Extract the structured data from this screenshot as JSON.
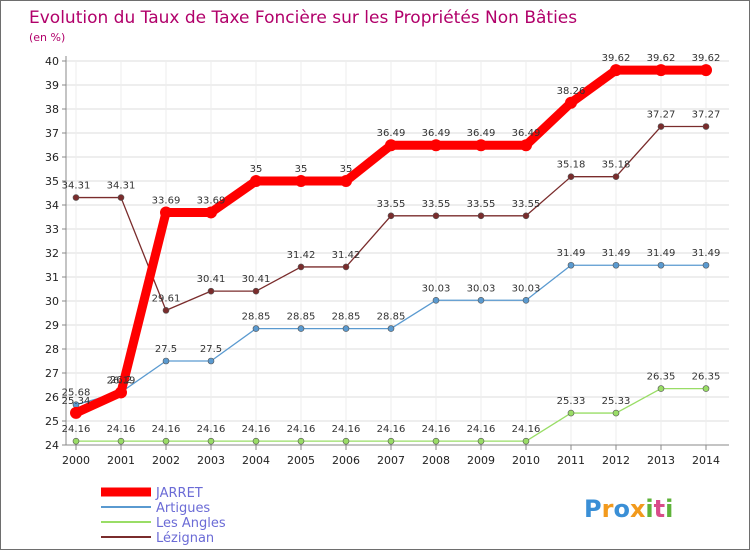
{
  "chart_data": {
    "type": "line",
    "title": "Evolution du Taux de Taxe Foncière sur les Propriétés Non Bâties",
    "subtitle": "(en %)",
    "xlabel": "",
    "ylabel": "",
    "ylim": [
      24,
      40
    ],
    "yticks": [
      24,
      25,
      26,
      27,
      28,
      29,
      30,
      31,
      32,
      33,
      34,
      35,
      36,
      37,
      38,
      39,
      40
    ],
    "x": [
      "2000",
      "2001",
      "2002",
      "2003",
      "2004",
      "2005",
      "2006",
      "2007",
      "2008",
      "2009",
      "2010",
      "2011",
      "2012",
      "2013",
      "2014"
    ],
    "grid": true,
    "legend_position": "bottom-left",
    "series": [
      {
        "name": "JARRET",
        "color": "#ff0000",
        "values": [
          25.34,
          26.19,
          33.69,
          33.69,
          35,
          35,
          35,
          36.49,
          36.49,
          36.49,
          36.49,
          38.26,
          39.62,
          39.62,
          39.62
        ],
        "labels": [
          "25.34",
          "26.19",
          "33.69",
          "33.69",
          "35",
          "35",
          "35",
          "36.49",
          "36.49",
          "36.49",
          "36.49",
          "38.26",
          "39.62",
          "39.62",
          "39.62"
        ]
      },
      {
        "name": "Artigues",
        "color": "#5a9ad0",
        "values": [
          25.68,
          26.2,
          27.5,
          27.5,
          28.85,
          28.85,
          28.85,
          28.85,
          30.03,
          30.03,
          30.03,
          31.49,
          31.49,
          31.49,
          31.49
        ],
        "labels": [
          "25.68",
          "26.2",
          "27.5",
          "27.5",
          "28.85",
          "28.85",
          "28.85",
          "28.85",
          "30.03",
          "30.03",
          "30.03",
          "31.49",
          "31.49",
          "31.49",
          "31.49"
        ]
      },
      {
        "name": "Les Angles",
        "color": "#99dd66",
        "values": [
          24.16,
          24.16,
          24.16,
          24.16,
          24.16,
          24.16,
          24.16,
          24.16,
          24.16,
          24.16,
          24.16,
          25.33,
          25.33,
          26.35,
          26.35
        ],
        "labels": [
          "24.16",
          "24.16",
          "24.16",
          "24.16",
          "24.16",
          "24.16",
          "24.16",
          "24.16",
          "24.16",
          "24.16",
          "24.16",
          "25.33",
          "25.33",
          "26.35",
          "26.35"
        ]
      },
      {
        "name": "Lézignan",
        "color": "#7a2c2c",
        "values": [
          34.31,
          34.31,
          29.61,
          30.41,
          30.41,
          31.42,
          31.42,
          33.55,
          33.55,
          33.55,
          33.55,
          35.18,
          35.18,
          37.27,
          37.27
        ],
        "labels": [
          "34.31",
          "34.31",
          "29.61",
          "30.41",
          "30.41",
          "31.42",
          "31.42",
          "33.55",
          "33.55",
          "33.55",
          "33.55",
          "35.18",
          "35.18",
          "37.27",
          "37.27"
        ]
      }
    ]
  },
  "logo": {
    "letters": [
      "P",
      "r",
      "o",
      "x",
      "i",
      "t",
      "i"
    ],
    "colors": [
      "#3a8fd6",
      "#f29a1d",
      "#3a8fd6",
      "#f29a1d",
      "#5fb33a",
      "#d94c8a",
      "#5fb33a"
    ]
  }
}
